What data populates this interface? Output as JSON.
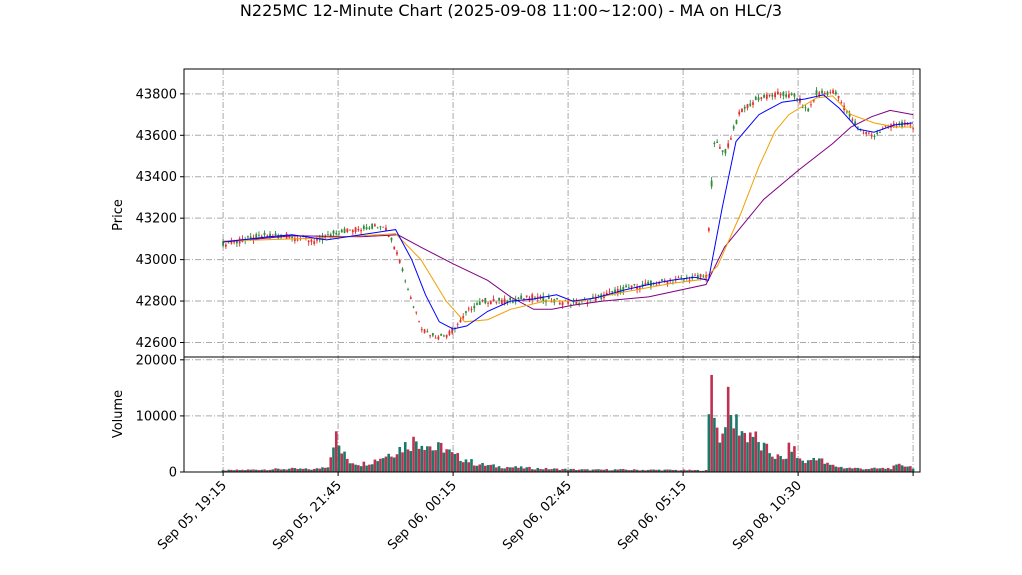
{
  "chart_data": {
    "type": "candlestick",
    "title": "N225MC 12-Minute Chart (2025-09-08 11:00~12:00) - MA on HLC/3",
    "price_panel": {
      "ylabel": "Price",
      "ylim": [
        42530,
        43920
      ],
      "yticks": [
        42600,
        42800,
        43000,
        43200,
        43400,
        43600,
        43800
      ],
      "ytick_labels": [
        "42600",
        "42800",
        "43000",
        "43200",
        "43400",
        "43600",
        "43800"
      ]
    },
    "volume_panel": {
      "ylabel": "Volume",
      "ylim": [
        0,
        20500
      ],
      "yticks": [
        0,
        10000,
        20000
      ],
      "ytick_labels": [
        "0",
        "10000",
        "20000"
      ]
    },
    "x_range": [
      -1.7,
      30.3
    ],
    "xticks": [
      0,
      5,
      10,
      15,
      20,
      25,
      30
    ],
    "xtick_labels": [
      "Sep 05, 19:15",
      "Sep 05, 21:45",
      "Sep 06, 00:15",
      "Sep 06, 02:45",
      "Sep 06, 05:15",
      "Sep 08, 10:30",
      ""
    ],
    "grid": true,
    "colors": {
      "up": "#2e8b3a",
      "down": "#e03030",
      "ma_fast": "#0000ff",
      "ma_mid": "#f0a000",
      "ma_slow": "#800080",
      "vol_a": "#1a7a6a",
      "vol_b": "#c03050",
      "grid": "#aaaaaa"
    },
    "price_path": [
      [
        0,
        43075
      ],
      [
        1,
        43095
      ],
      [
        2,
        43120
      ],
      [
        3,
        43110
      ],
      [
        4,
        43085
      ],
      [
        5,
        43135
      ],
      [
        6,
        43150
      ],
      [
        7,
        43170
      ],
      [
        7.6,
        43030
      ],
      [
        8.2,
        42800
      ],
      [
        8.7,
        42660
      ],
      [
        9.3,
        42630
      ],
      [
        9.8,
        42640
      ],
      [
        10.3,
        42700
      ],
      [
        10.8,
        42770
      ],
      [
        11.4,
        42800
      ],
      [
        12.4,
        42800
      ],
      [
        13.4,
        42820
      ],
      [
        14.4,
        42800
      ],
      [
        15.4,
        42790
      ],
      [
        16.4,
        42820
      ],
      [
        17.5,
        42860
      ],
      [
        18.5,
        42880
      ],
      [
        19.5,
        42900
      ],
      [
        21.0,
        42920
      ],
      [
        21.35,
        43570
      ],
      [
        21.8,
        43510
      ],
      [
        22.1,
        43600
      ],
      [
        22.5,
        43720
      ],
      [
        23.3,
        43780
      ],
      [
        24.2,
        43800
      ],
      [
        25.0,
        43780
      ],
      [
        25.4,
        43710
      ],
      [
        25.8,
        43800
      ],
      [
        26.6,
        43810
      ],
      [
        27.2,
        43700
      ],
      [
        27.7,
        43620
      ],
      [
        28.3,
        43600
      ],
      [
        29.0,
        43650
      ],
      [
        29.6,
        43650
      ],
      [
        30.0,
        43640
      ]
    ],
    "ma_fast": [
      [
        0,
        43085
      ],
      [
        2,
        43110
      ],
      [
        3,
        43120
      ],
      [
        4.5,
        43095
      ],
      [
        6,
        43120
      ],
      [
        7.5,
        43145
      ],
      [
        8.2,
        43000
      ],
      [
        8.8,
        42830
      ],
      [
        9.4,
        42700
      ],
      [
        10.0,
        42665
      ],
      [
        10.6,
        42680
      ],
      [
        11.5,
        42750
      ],
      [
        12.5,
        42800
      ],
      [
        13.5,
        42810
      ],
      [
        14.5,
        42830
      ],
      [
        15.2,
        42800
      ],
      [
        16.2,
        42815
      ],
      [
        17.5,
        42855
      ],
      [
        18.5,
        42880
      ],
      [
        19.5,
        42900
      ],
      [
        20.5,
        42915
      ],
      [
        21.1,
        42900
      ],
      [
        21.7,
        43250
      ],
      [
        22.3,
        43570
      ],
      [
        23.3,
        43700
      ],
      [
        24.3,
        43760
      ],
      [
        25.3,
        43775
      ],
      [
        26.1,
        43795
      ],
      [
        26.8,
        43730
      ],
      [
        27.6,
        43630
      ],
      [
        28.3,
        43615
      ],
      [
        29.2,
        43650
      ],
      [
        30.0,
        43660
      ]
    ],
    "ma_mid": [
      [
        0,
        43090
      ],
      [
        4.5,
        43105
      ],
      [
        7.5,
        43125
      ],
      [
        8.6,
        43000
      ],
      [
        9.7,
        42800
      ],
      [
        10.5,
        42700
      ],
      [
        11.5,
        42710
      ],
      [
        12.5,
        42760
      ],
      [
        14.0,
        42800
      ],
      [
        15.5,
        42800
      ],
      [
        17.5,
        42845
      ],
      [
        19.5,
        42885
      ],
      [
        20.9,
        42905
      ],
      [
        21.5,
        42970
      ],
      [
        22.5,
        43220
      ],
      [
        23.3,
        43450
      ],
      [
        24.0,
        43620
      ],
      [
        24.6,
        43700
      ],
      [
        25.8,
        43780
      ],
      [
        26.5,
        43790
      ],
      [
        27.3,
        43700
      ],
      [
        28.3,
        43660
      ],
      [
        29.2,
        43640
      ],
      [
        30.0,
        43640
      ]
    ],
    "ma_slow": [
      [
        0,
        43085
      ],
      [
        3,
        43115
      ],
      [
        6,
        43110
      ],
      [
        7.6,
        43120
      ],
      [
        8.6,
        43060
      ],
      [
        10.0,
        42980
      ],
      [
        11.5,
        42900
      ],
      [
        12.5,
        42820
      ],
      [
        13.5,
        42760
      ],
      [
        14.3,
        42760
      ],
      [
        15.2,
        42780
      ],
      [
        16.5,
        42800
      ],
      [
        18.5,
        42820
      ],
      [
        21.0,
        42880
      ],
      [
        21.8,
        43060
      ],
      [
        23.5,
        43290
      ],
      [
        25.0,
        43430
      ],
      [
        26.5,
        43560
      ],
      [
        27.3,
        43640
      ],
      [
        28.2,
        43690
      ],
      [
        29.0,
        43720
      ],
      [
        30.0,
        43700
      ]
    ],
    "volume_path": [
      [
        0,
        300
      ],
      [
        1,
        400
      ],
      [
        2,
        500
      ],
      [
        3,
        600
      ],
      [
        4,
        500
      ],
      [
        4.6,
        1200
      ],
      [
        4.85,
        7300
      ],
      [
        5.1,
        4000
      ],
      [
        5.5,
        2000
      ],
      [
        6,
        1500
      ],
      [
        6.5,
        2000
      ],
      [
        7,
        3000
      ],
      [
        7.5,
        4000
      ],
      [
        8,
        5200
      ],
      [
        8.4,
        6000
      ],
      [
        8.8,
        5500
      ],
      [
        9.2,
        4200
      ],
      [
        9.6,
        4700
      ],
      [
        10,
        3000
      ],
      [
        10.5,
        2500
      ],
      [
        11,
        1500
      ],
      [
        12,
        1000
      ],
      [
        13,
        800
      ],
      [
        14,
        600
      ],
      [
        15,
        500
      ],
      [
        16,
        400
      ],
      [
        17,
        450
      ],
      [
        18,
        400
      ],
      [
        19,
        400
      ],
      [
        20,
        350
      ],
      [
        21,
        300
      ],
      [
        21.25,
        19500
      ],
      [
        21.45,
        8000
      ],
      [
        21.7,
        6200
      ],
      [
        21.9,
        13500
      ],
      [
        22.1,
        9500
      ],
      [
        22.4,
        9000
      ],
      [
        22.7,
        6800
      ],
      [
        23.0,
        7500
      ],
      [
        23.3,
        5000
      ],
      [
        23.6,
        4200
      ],
      [
        24.0,
        3000
      ],
      [
        24.4,
        2200
      ],
      [
        24.7,
        5200
      ],
      [
        25.0,
        2500
      ],
      [
        25.4,
        1800
      ],
      [
        25.8,
        3000
      ],
      [
        26.2,
        1500
      ],
      [
        26.5,
        1200
      ],
      [
        27,
        800
      ],
      [
        28,
        600
      ],
      [
        29,
        700
      ],
      [
        29.5,
        1400
      ],
      [
        30.0,
        900
      ]
    ],
    "shade_x": [
      4.5,
      7.6,
      21.2
    ]
  }
}
